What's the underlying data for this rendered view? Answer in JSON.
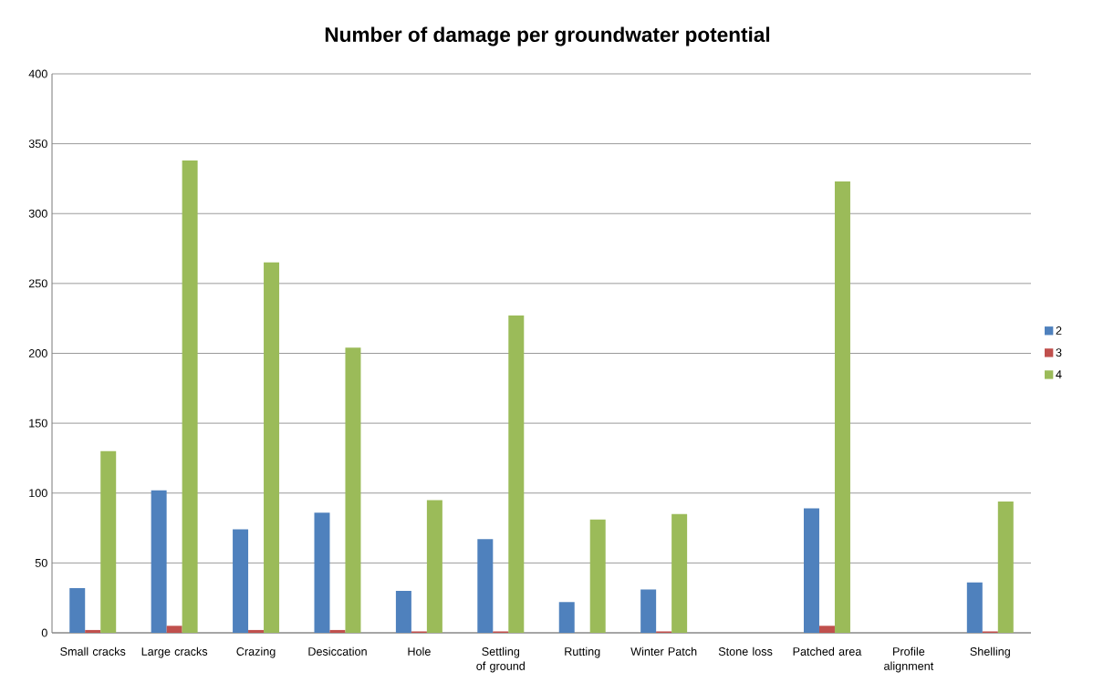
{
  "chart_data": {
    "type": "bar",
    "title": "Number of damage per groundwater potential",
    "categories": [
      "Small cracks",
      "Large cracks",
      "Crazing",
      "Desiccation",
      "Hole",
      "Settling of ground",
      "Rutting",
      "Winter Patch",
      "Stone loss",
      "Patched area",
      "Profile alignment",
      "Shelling"
    ],
    "series": [
      {
        "name": "2",
        "color": "#4f81bd",
        "values": [
          32,
          102,
          74,
          86,
          30,
          67,
          22,
          31,
          0,
          89,
          0,
          36
        ]
      },
      {
        "name": "3",
        "color": "#c0504d",
        "values": [
          2,
          5,
          2,
          2,
          1,
          1,
          0,
          1,
          0,
          5,
          0,
          1
        ]
      },
      {
        "name": "4",
        "color": "#9bbb59",
        "values": [
          130,
          338,
          265,
          204,
          95,
          227,
          81,
          85,
          0,
          323,
          0,
          94
        ]
      }
    ],
    "ylim": [
      0,
      400
    ],
    "yticks": [
      0,
      50,
      100,
      150,
      200,
      250,
      300,
      350,
      400
    ],
    "grid": "y",
    "legend": "right"
  }
}
